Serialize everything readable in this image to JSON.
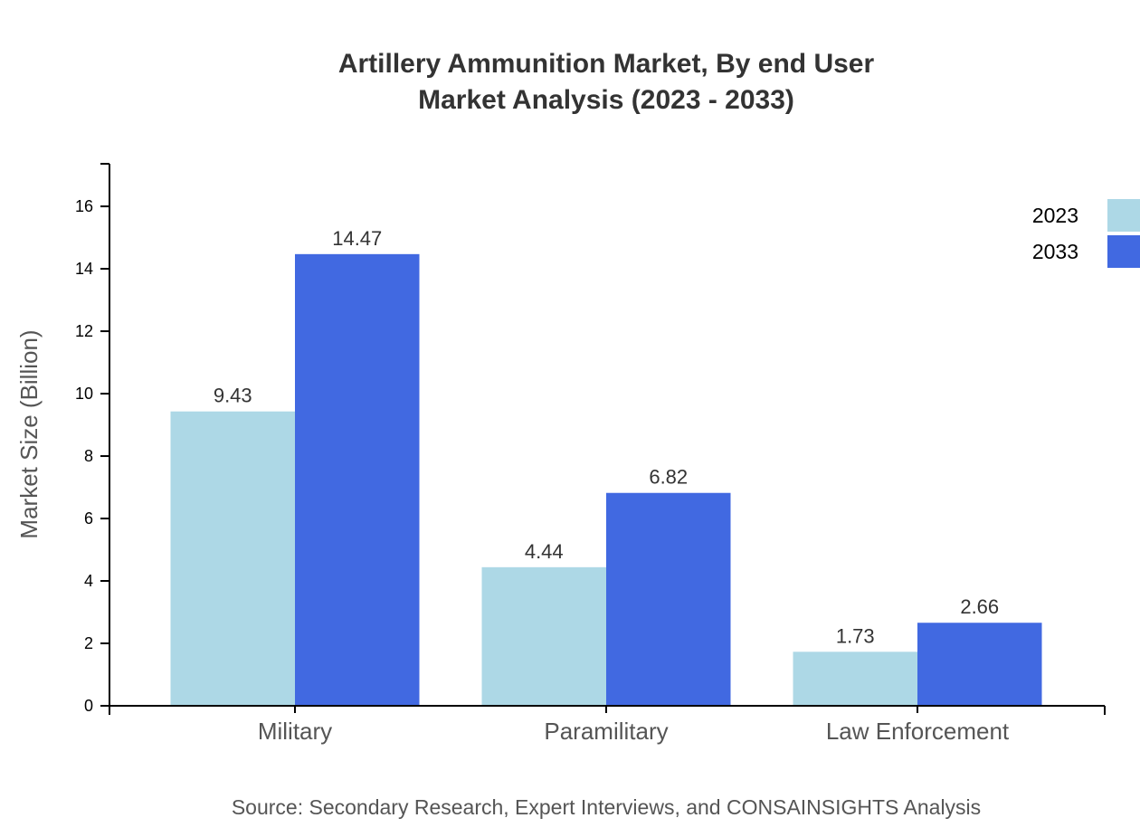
{
  "chart_data": {
    "type": "bar",
    "title": "Artillery Ammunition Market, By end User",
    "subtitle": "Market Analysis (2023 - 2033)",
    "xlabel": "",
    "ylabel": "Market Size (Billion)",
    "categories": [
      "Military",
      "Paramilitary",
      "Law Enforcement"
    ],
    "series": [
      {
        "name": "2023",
        "color": "#ADD8E6",
        "values": [
          9.43,
          4.44,
          1.73
        ]
      },
      {
        "name": "2033",
        "color": "#4169E1",
        "values": [
          14.47,
          6.82,
          2.66
        ]
      }
    ],
    "ylim": [
      0,
      17.364
    ],
    "yticks": [
      0,
      2,
      4,
      6,
      8,
      10,
      12,
      14,
      16
    ],
    "grid": false,
    "legend": "top-right",
    "source": "Source: Secondary Research, Expert Interviews, and CONSAINSIGHTS Analysis"
  }
}
